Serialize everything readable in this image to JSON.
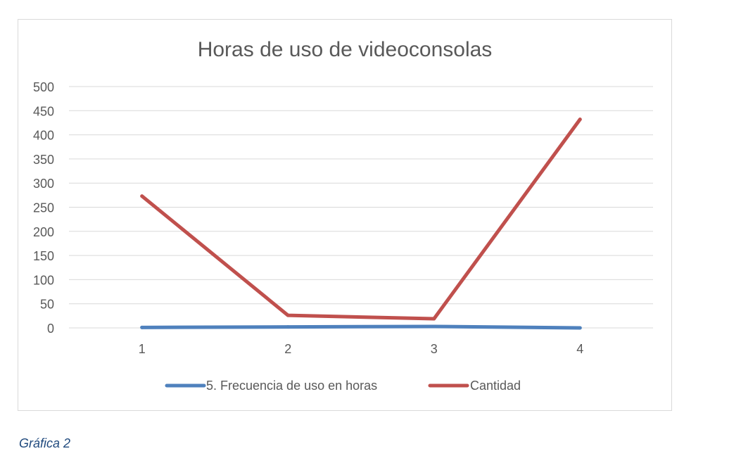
{
  "caption": "Gráfica 2",
  "chart_data": {
    "type": "line",
    "title": "Horas de uso de videoconsolas",
    "xlabel": "",
    "ylabel": "",
    "categories": [
      "1",
      "2",
      "3",
      "4"
    ],
    "ylim": [
      0,
      500
    ],
    "yticks": [
      0,
      50,
      100,
      150,
      200,
      250,
      300,
      350,
      400,
      450,
      500
    ],
    "grid": true,
    "legend_position": "bottom",
    "series": [
      {
        "name": "5. Frecuencia de uso en horas",
        "color": "#4f81bd",
        "values": [
          1,
          2,
          3,
          0
        ]
      },
      {
        "name": "Cantidad",
        "color": "#c0504d",
        "values": [
          273,
          26,
          19,
          432
        ]
      }
    ]
  }
}
